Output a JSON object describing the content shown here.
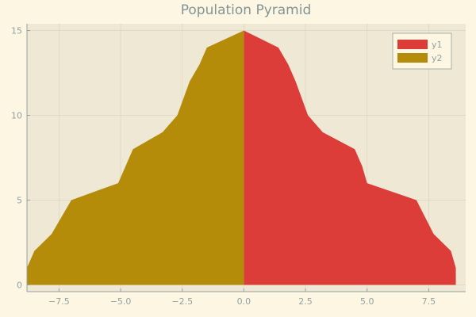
{
  "chart_data": {
    "type": "area",
    "title": "Population Pyramid",
    "xlabel": "",
    "ylabel": "",
    "xlim": [
      -8.8,
      9.0
    ],
    "ylim": [
      -0.4,
      15.4
    ],
    "x_ticks": [
      -7.5,
      -5.0,
      -2.5,
      0.0,
      2.5,
      5.0,
      7.5
    ],
    "x_tick_labels": [
      "−7.5",
      "−5.0",
      "−2.5",
      "0.0",
      "2.5",
      "5.0",
      "7.5"
    ],
    "y_ticks": [
      0,
      5,
      10,
      15
    ],
    "y_tick_labels": [
      "0",
      "5",
      "10",
      "15"
    ],
    "grid": true,
    "legend_position": "top-right",
    "series": [
      {
        "name": "y1",
        "color": "#dc3d38",
        "points": [
          [
            8.6,
            0
          ],
          [
            8.6,
            1
          ],
          [
            8.4,
            2
          ],
          [
            7.7,
            3
          ],
          [
            7.0,
            5
          ],
          [
            5.0,
            6
          ],
          [
            4.8,
            7
          ],
          [
            4.5,
            8
          ],
          [
            3.2,
            9
          ],
          [
            2.6,
            10
          ],
          [
            2.1,
            12
          ],
          [
            1.8,
            13
          ],
          [
            1.4,
            14
          ],
          [
            0.0,
            15
          ]
        ]
      },
      {
        "name": "y2",
        "color": "#b58b0a",
        "points": [
          [
            -8.8,
            0
          ],
          [
            -8.8,
            1
          ],
          [
            -8.5,
            2
          ],
          [
            -7.8,
            3
          ],
          [
            -7.0,
            5
          ],
          [
            -5.1,
            6
          ],
          [
            -4.8,
            7
          ],
          [
            -4.5,
            8
          ],
          [
            -3.3,
            9
          ],
          [
            -2.7,
            10
          ],
          [
            -2.2,
            12
          ],
          [
            -1.8,
            13
          ],
          [
            -1.5,
            14
          ],
          [
            0.0,
            15
          ]
        ]
      }
    ]
  }
}
